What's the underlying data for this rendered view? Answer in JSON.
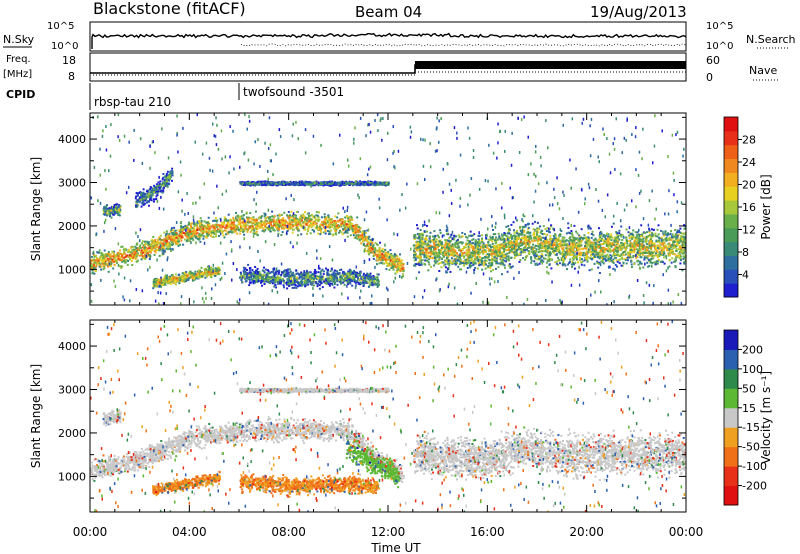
{
  "header": {
    "station": "Blackstone (fitACF)",
    "beam": "Beam 04",
    "date": "19/Aug/2013"
  },
  "status_panels": {
    "nsky_label": "N.Sky",
    "nsearch_label": "N.Search",
    "noise_ticks_left": [
      "10^5",
      "10^0"
    ],
    "noise_ticks_right": [
      "10^5",
      "10^0"
    ],
    "freq_label_1": "Freq.",
    "freq_label_2": "[MHz]",
    "freq_ticks": [
      "18",
      "8"
    ],
    "nave_label": "Nave",
    "nave_ticks": [
      "60",
      "0"
    ],
    "cpid_label": "CPID",
    "cpid_entries": [
      {
        "name": "rbsp-tau 210",
        "start_hour": 0
      },
      {
        "name": "twofsound -3501",
        "start_hour": 6
      }
    ]
  },
  "chart_data": [
    {
      "type": "heatmap",
      "title": "",
      "xlabel": "Time UT",
      "ylabel": "Slant Range [km]",
      "colorbar_label": "Power [dB]",
      "xlim": [
        0,
        24
      ],
      "ylim": [
        180,
        4600
      ],
      "x_ticks": [
        "00:00",
        "04:00",
        "08:00",
        "12:00",
        "16:00",
        "20:00",
        "00:00"
      ],
      "y_ticks": [
        1000,
        2000,
        3000,
        4000
      ],
      "colorbar_ticks": [
        4,
        8,
        12,
        16,
        20,
        24,
        28
      ],
      "colorbar_range": [
        0,
        32
      ],
      "colors": [
        "#1f1fd0",
        "#2850b8",
        "#2e6fa0",
        "#3a8a78",
        "#4a9a58",
        "#6ab04a",
        "#a6c83a",
        "#e8d020",
        "#f2b020",
        "#f08820",
        "#ee6018",
        "#e83018",
        "#e01010"
      ],
      "bands": [
        {
          "t": [
            0,
            2.0,
            4.0,
            6.0,
            8.0,
            10.5,
            11.5,
            12.6
          ],
          "r": [
            1150,
            1400,
            1900,
            2050,
            2100,
            2050,
            1400,
            1050
          ],
          "w": 220,
          "v": 22
        },
        {
          "t": [
            2.5,
            5.2
          ],
          "r": [
            700,
            1000
          ],
          "w": 110,
          "v": 20
        },
        {
          "t": [
            6.0,
            8.0,
            10.5,
            11.6
          ],
          "r": [
            900,
            800,
            850,
            750
          ],
          "w": 180,
          "v": 12
        },
        {
          "t": [
            1.8,
            2.8,
            3.3
          ],
          "r": [
            2550,
            2900,
            3250
          ],
          "w": 180,
          "v": 10
        },
        {
          "t": [
            0.5,
            1.2
          ],
          "r": [
            2350,
            2400
          ],
          "w": 140,
          "v": 14
        },
        {
          "t": [
            13.0,
            16.0,
            17.5,
            19.0,
            24.0
          ],
          "r": [
            1500,
            1400,
            1700,
            1500,
            1550
          ],
          "w": 420,
          "v": 18
        },
        {
          "t": [
            6.0,
            12.0
          ],
          "r": [
            3000,
            3000
          ],
          "w": 40,
          "v": 10
        }
      ]
    },
    {
      "type": "heatmap",
      "title": "",
      "xlabel": "Time UT",
      "ylabel": "Slant Range [km]",
      "colorbar_label": "Velocity [m s⁻¹]",
      "xlim": [
        0,
        24
      ],
      "ylim": [
        180,
        4600
      ],
      "x_ticks": [
        "00:00",
        "04:00",
        "08:00",
        "12:00",
        "16:00",
        "20:00",
        "00:00"
      ],
      "y_ticks": [
        1000,
        2000,
        3000,
        4000
      ],
      "colorbar_ticks": [
        "200",
        "100",
        "50",
        "15",
        "-15",
        "-50",
        "-100",
        "-200"
      ],
      "colors": [
        "#1a1ab8",
        "#2b5fb0",
        "#2e8a4a",
        "#5cb832",
        "#c8c8c8",
        "#f0a020",
        "#f07018",
        "#e83018",
        "#e01010"
      ],
      "bands": [
        {
          "t": [
            0,
            2.0,
            4.0,
            6.0,
            8.0,
            10.5,
            11.5,
            12.6
          ],
          "r": [
            1150,
            1400,
            1900,
            2050,
            2100,
            2050,
            1400,
            1050
          ],
          "w": 220,
          "v": 0
        },
        {
          "t": [
            2.5,
            5.2
          ],
          "r": [
            700,
            1000
          ],
          "w": 110,
          "v": -50
        },
        {
          "t": [
            6.0,
            8.0,
            10.5,
            11.6
          ],
          "r": [
            900,
            800,
            850,
            750
          ],
          "w": 180,
          "v": -50
        },
        {
          "t": [
            10.3,
            11.5,
            12.4
          ],
          "r": [
            1700,
            1300,
            1050
          ],
          "w": 250,
          "v": 30
        },
        {
          "t": [
            0.5,
            1.2
          ],
          "r": [
            2350,
            2400
          ],
          "w": 140,
          "v": 0
        },
        {
          "t": [
            13.0,
            16.0,
            17.5,
            19.0,
            24.0
          ],
          "r": [
            1500,
            1400,
            1700,
            1500,
            1550
          ],
          "w": 420,
          "v": 0
        },
        {
          "t": [
            6.0,
            12.0
          ],
          "r": [
            3000,
            3000
          ],
          "w": 40,
          "v": 0
        }
      ]
    }
  ]
}
